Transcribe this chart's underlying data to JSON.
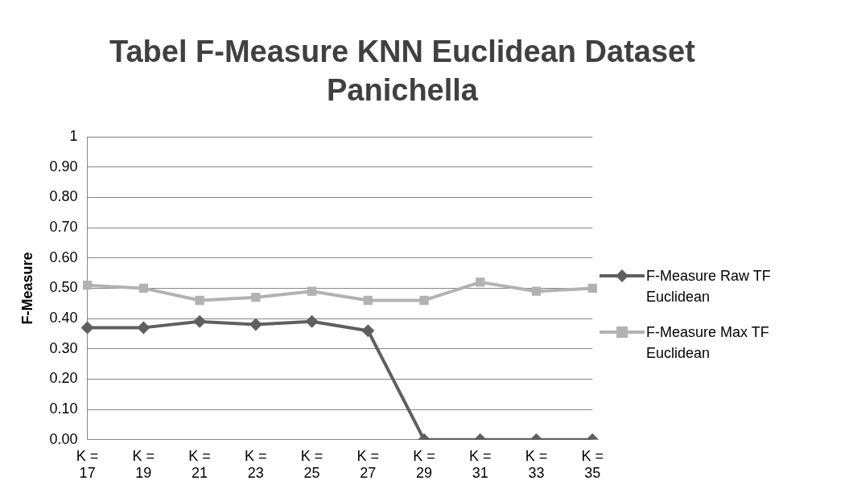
{
  "chart_data": {
    "type": "line",
    "title": "Tabel F-Measure KNN Euclidean Dataset Panichella",
    "ylabel": "F-Measure",
    "categories": [
      "K = 17",
      "K = 19",
      "K = 21",
      "K = 23",
      "K = 25",
      "K = 27",
      "K = 29",
      "K = 31",
      "K = 33",
      "K = 35"
    ],
    "series": [
      {
        "name": "F-Measure Raw TF Euclidean",
        "color": "#5f5f5f",
        "marker": "diamond",
        "values": [
          0.37,
          0.37,
          0.39,
          0.38,
          0.39,
          0.36,
          0,
          0,
          0,
          0
        ]
      },
      {
        "name": "F-Measure Max TF Euclidean",
        "color": "#b2b2b2",
        "marker": "square",
        "values": [
          0.51,
          0.5,
          0.46,
          0.47,
          0.49,
          0.46,
          0.46,
          0.52,
          0.49,
          0.5
        ]
      }
    ],
    "ylim": [
      0,
      1
    ],
    "yticks": [
      {
        "value": 0,
        "label": "0.00"
      },
      {
        "value": 0.1,
        "label": "0.10"
      },
      {
        "value": 0.2,
        "label": "0.20"
      },
      {
        "value": 0.3,
        "label": "0.30"
      },
      {
        "value": 0.4,
        "label": "0.40"
      },
      {
        "value": 0.5,
        "label": "0.50"
      },
      {
        "value": 0.6,
        "label": "0.60"
      },
      {
        "value": 0.7,
        "label": "0.70"
      },
      {
        "value": 0.8,
        "label": "0.80"
      },
      {
        "value": 0.9,
        "label": "0.90"
      },
      1
    ],
    "grid": "y",
    "legend": "right"
  }
}
